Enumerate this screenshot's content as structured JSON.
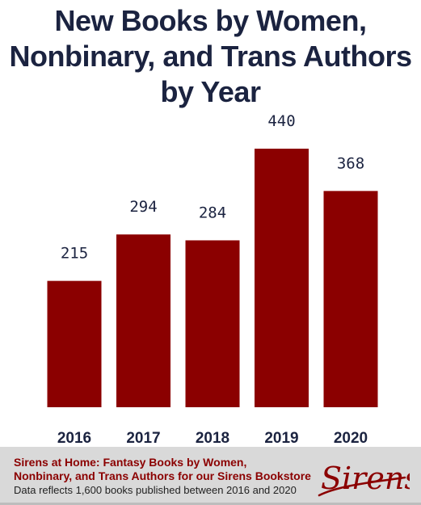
{
  "chart_data": {
    "type": "bar",
    "title_lines": [
      "New Books by Women,",
      "Nonbinary, and Trans Authors",
      "by Year"
    ],
    "categories": [
      "2016",
      "2017",
      "2018",
      "2019",
      "2020"
    ],
    "values": [
      215,
      294,
      284,
      440,
      368
    ],
    "xlabel": "",
    "ylabel": "",
    "ylim": [
      0,
      440
    ],
    "grid": false,
    "legend": "none",
    "bar_color": "#8b0000",
    "label_color": "#1b2340"
  },
  "footer": {
    "line1": "Sirens at Home: Fantasy Books by Women,",
    "line2": "Nonbinary, and Trans Authors for our Sirens Bookstore",
    "note": "Data reflects 1,600 books published between 2016 and 2020",
    "logo_text": "Sirens",
    "background": "#d9d9d9",
    "accent": "#8b0000"
  }
}
